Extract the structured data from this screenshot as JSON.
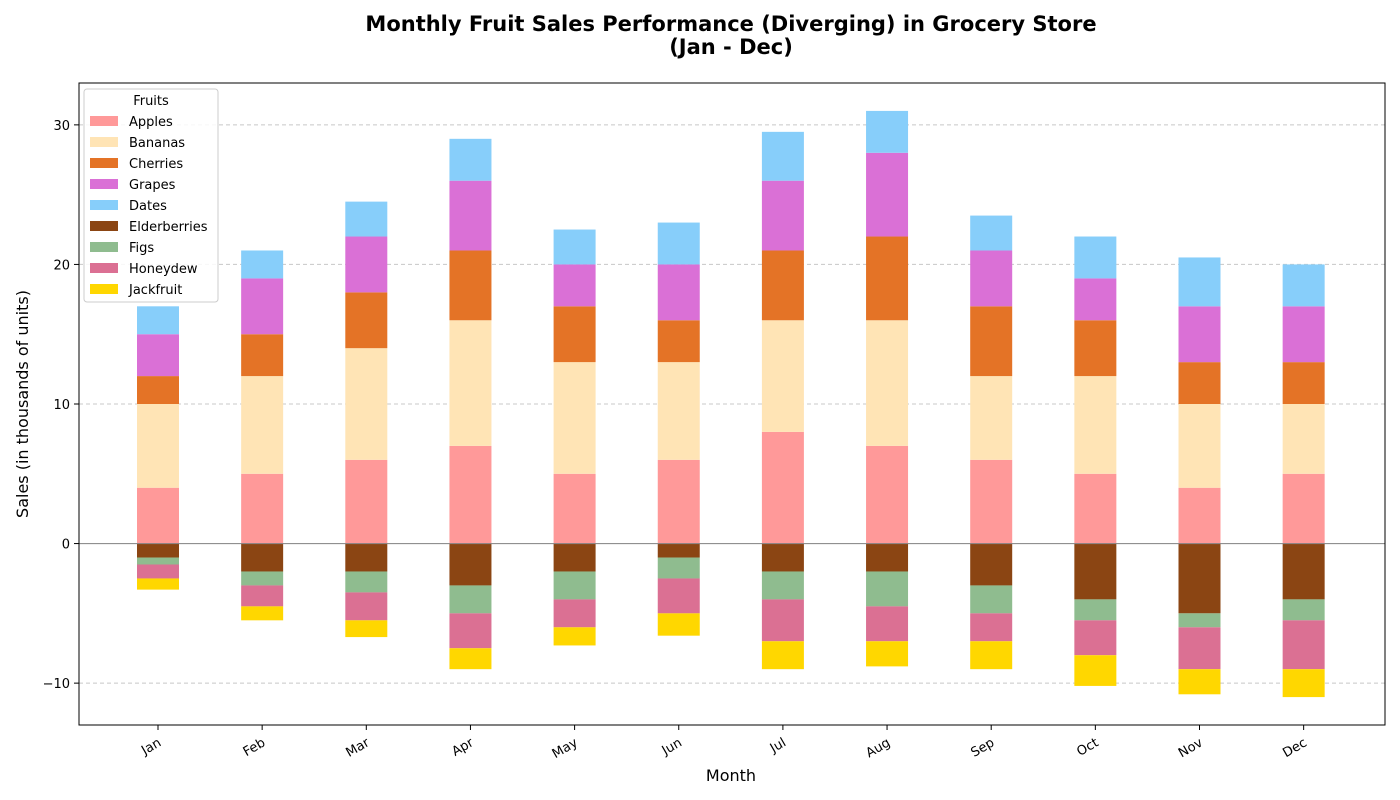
{
  "chart_data": {
    "type": "bar",
    "stacked": true,
    "diverging": true,
    "title": "Monthly Fruit Sales Performance (Diverging) in Grocery Store",
    "subtitle": "(Jan - Dec)",
    "xlabel": "Month",
    "ylabel": "Sales (in thousands of units)",
    "ylim": [
      -13,
      33
    ],
    "yticks": [
      -10,
      0,
      10,
      20,
      30
    ],
    "grid": "horizontal dashed",
    "legend_title": "Fruits",
    "legend_position": "top-left",
    "categories": [
      "Jan",
      "Feb",
      "Mar",
      "Apr",
      "May",
      "Jun",
      "Jul",
      "Aug",
      "Sep",
      "Oct",
      "Nov",
      "Dec"
    ],
    "series": [
      {
        "name": "Apples",
        "color": "#FF9999",
        "direction": "positive",
        "values": [
          4,
          5,
          6,
          7,
          5,
          6,
          8,
          7,
          6,
          5,
          4,
          5
        ]
      },
      {
        "name": "Bananas",
        "color": "#FFE4B5",
        "direction": "positive",
        "values": [
          6,
          7,
          8,
          9,
          8,
          7,
          8,
          9,
          6,
          7,
          6,
          5
        ]
      },
      {
        "name": "Cherries",
        "color": "#E47326",
        "direction": "positive",
        "values": [
          2,
          3,
          4,
          5,
          4,
          3,
          5,
          6,
          5,
          4,
          3,
          3
        ]
      },
      {
        "name": "Grapes",
        "color": "#DA70D6",
        "direction": "positive",
        "values": [
          3,
          4,
          4,
          5,
          3,
          4,
          5,
          6,
          4,
          3,
          4,
          4
        ]
      },
      {
        "name": "Dates",
        "color": "#87CEFA",
        "direction": "positive",
        "values": [
          2,
          2,
          2.5,
          3,
          2.5,
          3,
          3.5,
          3,
          2.5,
          3,
          3.5,
          3
        ]
      },
      {
        "name": "Elderberries",
        "color": "#8B4513",
        "direction": "negative",
        "values": [
          -1,
          -2,
          -2,
          -3,
          -2,
          -1,
          -2,
          -2,
          -3,
          -4,
          -5,
          -4
        ]
      },
      {
        "name": "Figs",
        "color": "#8FBC8F",
        "direction": "negative",
        "values": [
          -0.5,
          -1,
          -1.5,
          -2,
          -2,
          -1.5,
          -2,
          -2.5,
          -2,
          -1.5,
          -1,
          -1.5
        ]
      },
      {
        "name": "Honeydew",
        "color": "#DB7093",
        "direction": "negative",
        "values": [
          -1,
          -1.5,
          -2,
          -2.5,
          -2,
          -2.5,
          -3,
          -2.5,
          -2,
          -2.5,
          -3,
          -3.5
        ]
      },
      {
        "name": "Jackfruit",
        "color": "#FFD700",
        "direction": "negative",
        "values": [
          -0.8,
          -1,
          -1.2,
          -1.5,
          -1.3,
          -1.6,
          -2,
          -1.8,
          -2,
          -2.2,
          -1.8,
          -2
        ]
      }
    ]
  }
}
